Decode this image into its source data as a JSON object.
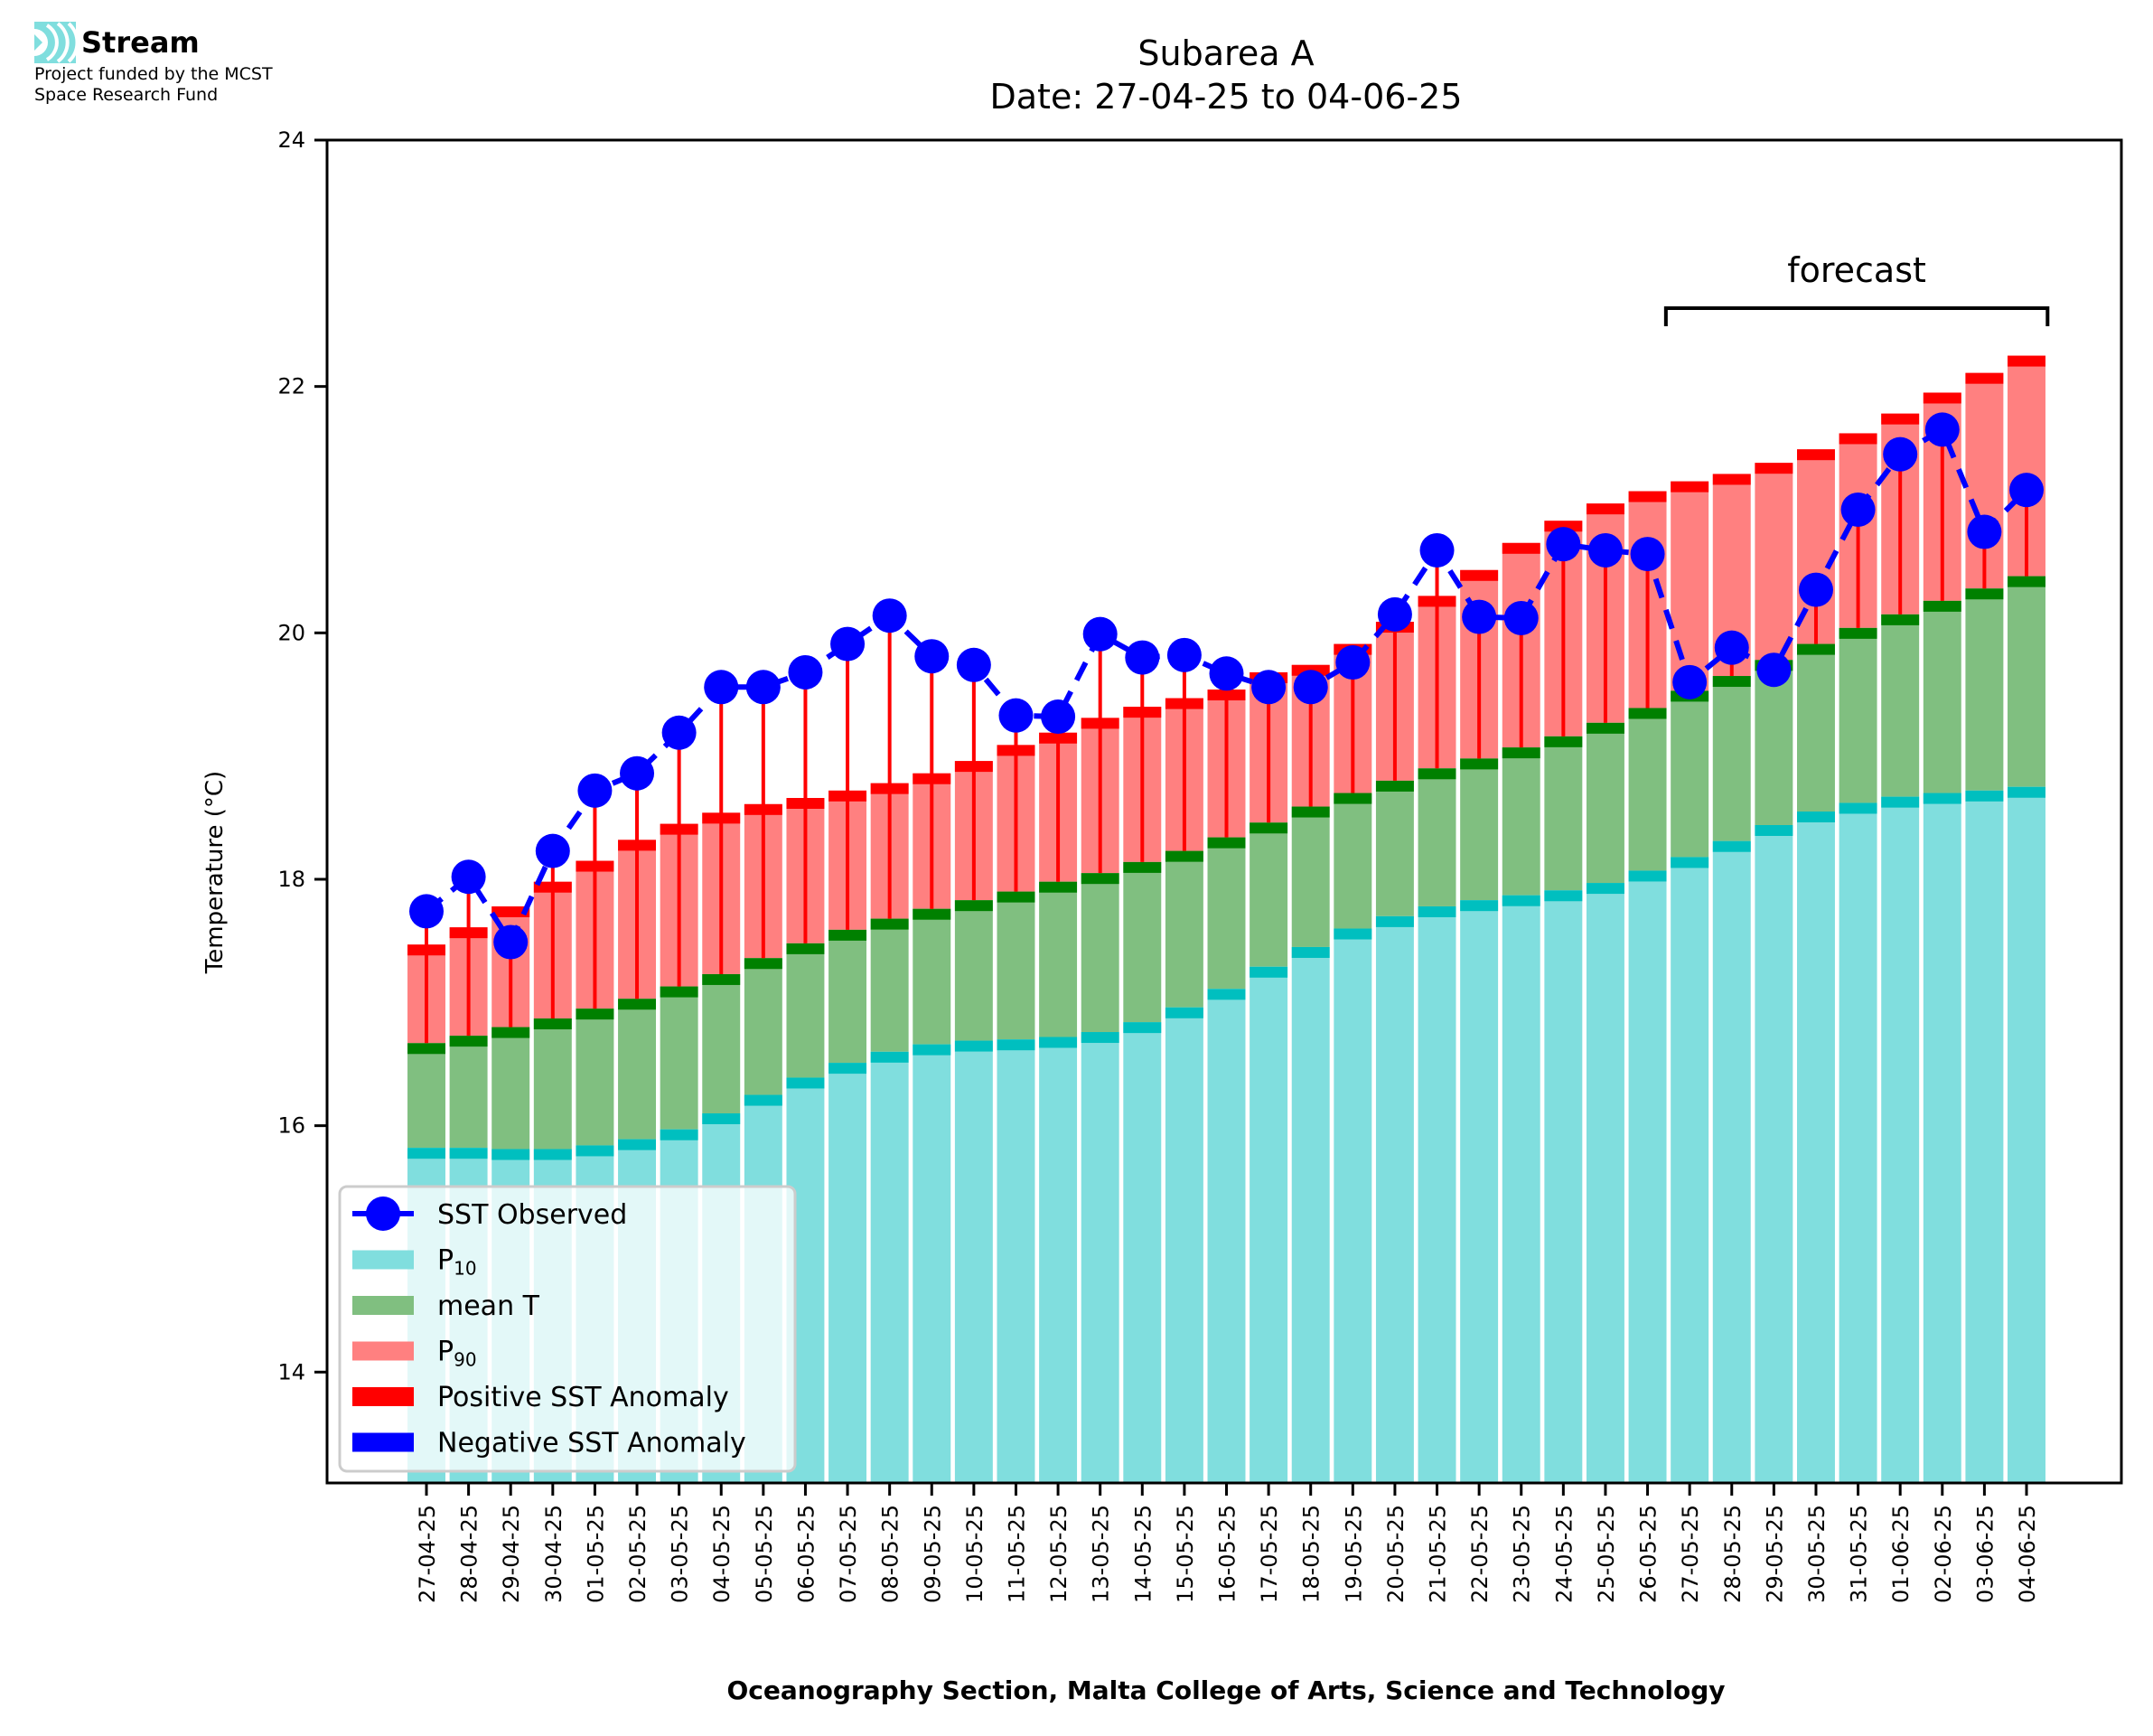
{
  "logo": {
    "brand": "Stream",
    "funded_line1": "Project funded by the MCST",
    "funded_line2": "Space Research Fund"
  },
  "chart_data": {
    "type": "bar",
    "title": "Subarea A",
    "subtitle": "Date: 27-04-25 to 04-06-25",
    "xlabel": "Oceanography Section, Malta College of Arts, Science and Technology",
    "ylabel": "Temperature (°C)",
    "ylim": [
      13.1,
      24
    ],
    "yticks": [
      14,
      16,
      18,
      20,
      22,
      24
    ],
    "grid": false,
    "legend_position": "lower-left",
    "annotation": {
      "text": "forecast",
      "from": "27-05-25",
      "to": "04-06-25"
    },
    "colors": {
      "p10": "#80dede",
      "p10_edge": "#00bfbf",
      "mean": "#80bf80",
      "mean_edge": "#008000",
      "p90": "#ff8080",
      "p90_edge": "#ff0000",
      "observed": "#0000ff",
      "positive_anomaly": "#ff0000",
      "negative_anomaly": "#0000ff"
    },
    "legend": [
      {
        "key": "observed",
        "label": "SST Observed"
      },
      {
        "key": "p10",
        "label": "P",
        "sub": "10"
      },
      {
        "key": "mean",
        "label": "mean T"
      },
      {
        "key": "p90",
        "label": "P",
        "sub": "90"
      },
      {
        "key": "positive_anomaly",
        "label": "Positive SST Anomaly"
      },
      {
        "key": "negative_anomaly",
        "label": "Negative SST Anomaly"
      }
    ],
    "categories": [
      "27-04-25",
      "28-04-25",
      "29-04-25",
      "30-04-25",
      "01-05-25",
      "02-05-25",
      "03-05-25",
      "04-05-25",
      "05-05-25",
      "06-05-25",
      "07-05-25",
      "08-05-25",
      "09-05-25",
      "10-05-25",
      "11-05-25",
      "12-05-25",
      "13-05-25",
      "14-05-25",
      "15-05-25",
      "16-05-25",
      "17-05-25",
      "18-05-25",
      "19-05-25",
      "20-05-25",
      "21-05-25",
      "22-05-25",
      "23-05-25",
      "24-05-25",
      "25-05-25",
      "26-05-25",
      "27-05-25",
      "28-05-25",
      "29-05-25",
      "30-05-25",
      "31-05-25",
      "01-06-25",
      "02-06-25",
      "03-06-25",
      "04-06-25"
    ],
    "series": [
      {
        "name": "P10",
        "values": [
          15.82,
          15.82,
          15.81,
          15.81,
          15.84,
          15.89,
          15.97,
          16.1,
          16.25,
          16.39,
          16.51,
          16.6,
          16.66,
          16.69,
          16.7,
          16.72,
          16.76,
          16.84,
          16.96,
          17.11,
          17.29,
          17.45,
          17.6,
          17.7,
          17.78,
          17.83,
          17.87,
          17.91,
          17.97,
          18.07,
          18.18,
          18.31,
          18.44,
          18.55,
          18.62,
          18.67,
          18.7,
          18.72,
          18.75
        ]
      },
      {
        "name": "mean T",
        "values": [
          16.67,
          16.73,
          16.8,
          16.87,
          16.95,
          17.03,
          17.13,
          17.23,
          17.36,
          17.48,
          17.59,
          17.68,
          17.76,
          17.83,
          17.9,
          17.98,
          18.05,
          18.14,
          18.23,
          18.34,
          18.46,
          18.59,
          18.7,
          18.8,
          18.9,
          18.98,
          19.07,
          19.16,
          19.27,
          19.39,
          19.53,
          19.65,
          19.78,
          19.91,
          20.04,
          20.15,
          20.26,
          20.36,
          20.46
        ]
      },
      {
        "name": "P90",
        "values": [
          17.47,
          17.61,
          17.78,
          17.98,
          18.15,
          18.32,
          18.45,
          18.54,
          18.61,
          18.66,
          18.72,
          18.78,
          18.86,
          18.96,
          19.09,
          19.19,
          19.31,
          19.4,
          19.47,
          19.54,
          19.68,
          19.74,
          19.91,
          20.09,
          20.3,
          20.51,
          20.73,
          20.91,
          21.05,
          21.15,
          21.23,
          21.29,
          21.38,
          21.49,
          21.62,
          21.78,
          21.95,
          22.11,
          22.25
        ]
      },
      {
        "name": "SST Observed",
        "values": [
          17.74,
          18.02,
          17.49,
          18.23,
          18.72,
          18.86,
          19.19,
          19.56,
          19.56,
          19.68,
          19.91,
          20.14,
          19.81,
          19.74,
          19.33,
          19.32,
          19.99,
          19.8,
          19.82,
          19.67,
          19.56,
          19.56,
          19.76,
          20.15,
          20.67,
          20.13,
          20.12,
          20.72,
          20.67,
          20.64,
          19.6,
          19.88,
          19.7,
          20.35,
          21.0,
          21.45,
          21.65,
          20.82,
          21.16
        ]
      }
    ]
  }
}
